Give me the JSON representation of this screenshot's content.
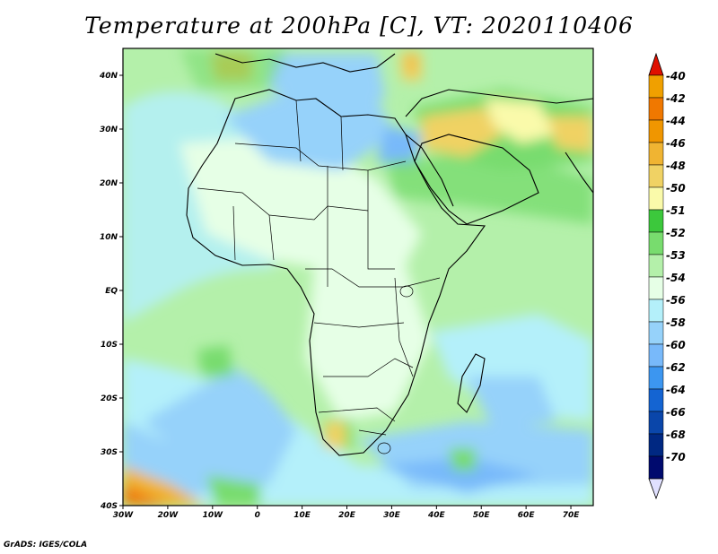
{
  "title": "Temperature at 200hPa [C], VT: 2020110406",
  "credit": "GrADS: IGES/COLA",
  "map": {
    "lon_range": [
      -30,
      75
    ],
    "lat_range": [
      -40,
      45
    ],
    "lat_ticks": [
      {
        "value": 40,
        "label": "40N"
      },
      {
        "value": 30,
        "label": "30N"
      },
      {
        "value": 20,
        "label": "20N"
      },
      {
        "value": 10,
        "label": "10N"
      },
      {
        "value": 0,
        "label": "EQ"
      },
      {
        "value": -10,
        "label": "10S"
      },
      {
        "value": -20,
        "label": "20S"
      },
      {
        "value": -30,
        "label": "30S"
      },
      {
        "value": -40,
        "label": "40S"
      }
    ],
    "lon_ticks": [
      {
        "value": -30,
        "label": "30W"
      },
      {
        "value": -20,
        "label": "20W"
      },
      {
        "value": -10,
        "label": "10W"
      },
      {
        "value": 0,
        "label": "0"
      },
      {
        "value": 10,
        "label": "10E"
      },
      {
        "value": 20,
        "label": "20E"
      },
      {
        "value": 30,
        "label": "30E"
      },
      {
        "value": 40,
        "label": "40E"
      },
      {
        "value": 50,
        "label": "50E"
      },
      {
        "value": 60,
        "label": "60E"
      },
      {
        "value": 70,
        "label": "70E"
      }
    ]
  },
  "colorbar": {
    "levels": [
      {
        "label": "-40",
        "color": "#f0a000"
      },
      {
        "label": "-42",
        "color": "#f07800"
      },
      {
        "label": "-44",
        "color": "#f09600"
      },
      {
        "label": "-46",
        "color": "#f0b432"
      },
      {
        "label": "-48",
        "color": "#f0d264"
      },
      {
        "label": "-50",
        "color": "#fafaaa"
      },
      {
        "label": "-51",
        "color": "#3cc83c"
      },
      {
        "label": "-52",
        "color": "#78dc6e"
      },
      {
        "label": "-53",
        "color": "#b4f0aa"
      },
      {
        "label": "-54",
        "color": "#e6ffe6"
      },
      {
        "label": "-56",
        "color": "#b4f0fa"
      },
      {
        "label": "-58",
        "color": "#96d2fa"
      },
      {
        "label": "-60",
        "color": "#78b9fa"
      },
      {
        "label": "-62",
        "color": "#3c96f0"
      },
      {
        "label": "-64",
        "color": "#1464d2"
      },
      {
        "label": "-66",
        "color": "#0a46aa"
      },
      {
        "label": "-68",
        "color": "#002882"
      },
      {
        "label": "-70",
        "color": "#000a6e"
      }
    ],
    "top_cap_color": "#e01000",
    "bottom_cap_color": "#e0e0ff"
  }
}
